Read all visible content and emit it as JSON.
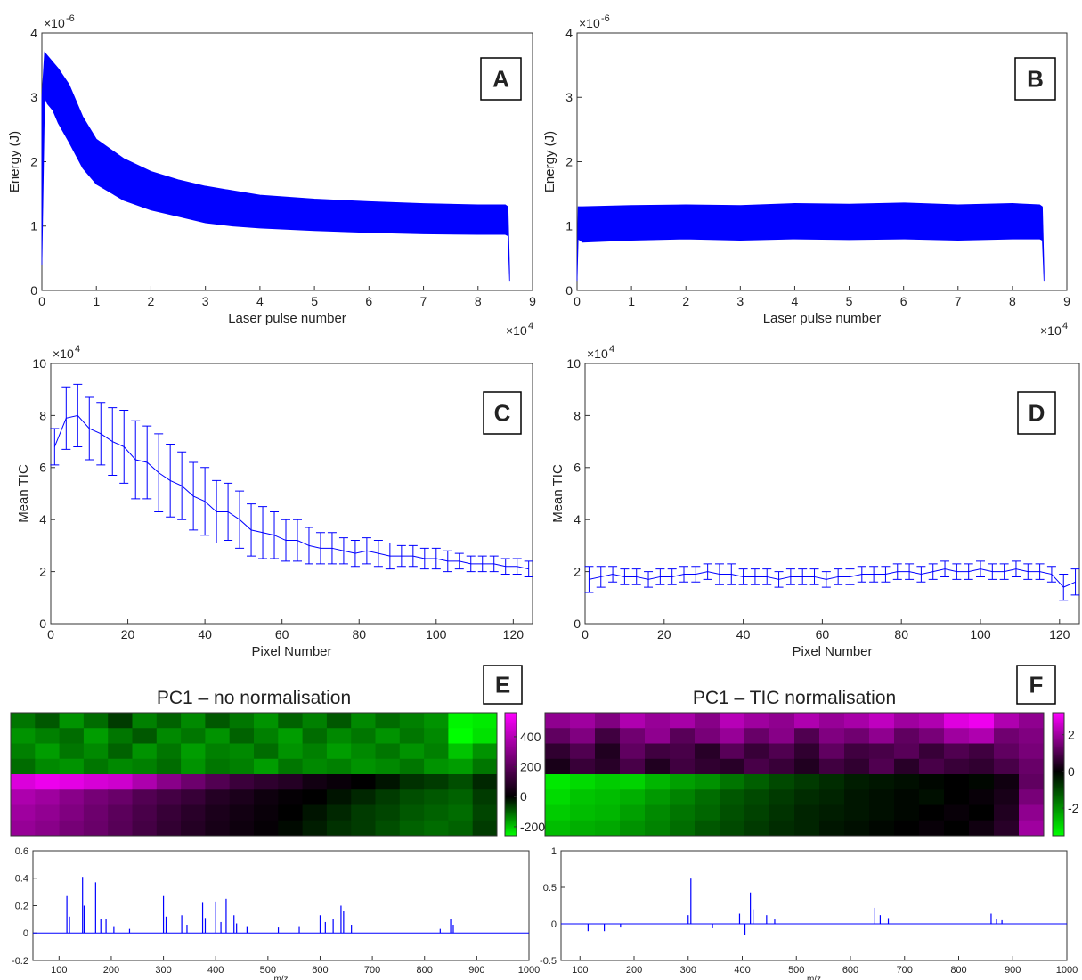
{
  "chart_data": [
    {
      "type": "band",
      "panel_label": "A",
      "x_label": "Laser pulse number",
      "y_label": "Energy (J)",
      "x_multiplier": {
        "base": "×10",
        "exponent": "4"
      },
      "y_multiplier": {
        "base": "×10",
        "exponent": "-6"
      },
      "xlim": [
        0,
        9
      ],
      "xticks": [
        0,
        1,
        2,
        3,
        4,
        5,
        6,
        7,
        8,
        9
      ],
      "ylim": [
        0,
        4
      ],
      "yticks": [
        0,
        1,
        2,
        3,
        4
      ],
      "color": "#0000ff",
      "x": [
        0,
        0.05,
        0.1,
        0.2,
        0.3,
        0.5,
        0.75,
        1,
        1.5,
        2,
        2.5,
        3,
        3.5,
        4,
        5,
        6,
        7,
        8,
        8.5,
        8.55,
        8.58
      ],
      "upper": [
        3.0,
        3.7,
        3.65,
        3.55,
        3.45,
        3.2,
        2.7,
        2.35,
        2.05,
        1.85,
        1.72,
        1.62,
        1.55,
        1.48,
        1.42,
        1.38,
        1.35,
        1.33,
        1.33,
        1.3,
        0.3
      ],
      "lower": [
        0.4,
        3.0,
        2.9,
        2.8,
        2.6,
        2.3,
        1.9,
        1.65,
        1.4,
        1.25,
        1.15,
        1.05,
        1.0,
        0.97,
        0.93,
        0.9,
        0.88,
        0.87,
        0.87,
        0.85,
        0.15
      ]
    },
    {
      "type": "band",
      "panel_label": "B",
      "x_label": "Laser pulse number",
      "y_label": "Energy (J)",
      "x_multiplier": {
        "base": "×10",
        "exponent": "4"
      },
      "y_multiplier": {
        "base": "×10",
        "exponent": "-6"
      },
      "xlim": [
        0,
        9
      ],
      "xticks": [
        0,
        1,
        2,
        3,
        4,
        5,
        6,
        7,
        8,
        9
      ],
      "ylim": [
        0,
        4
      ],
      "yticks": [
        0,
        1,
        2,
        3,
        4
      ],
      "color": "#0000ff",
      "x": [
        0,
        0.02,
        0.1,
        1,
        2,
        3,
        4,
        5,
        6,
        7,
        8,
        8.5,
        8.55,
        8.58
      ],
      "upper": [
        0.3,
        1.3,
        1.3,
        1.32,
        1.33,
        1.32,
        1.35,
        1.34,
        1.36,
        1.33,
        1.35,
        1.33,
        1.3,
        0.3
      ],
      "lower": [
        0.15,
        0.8,
        0.75,
        0.78,
        0.8,
        0.78,
        0.8,
        0.79,
        0.8,
        0.78,
        0.8,
        0.8,
        0.78,
        0.15
      ]
    },
    {
      "type": "errorbar",
      "panel_label": "C",
      "x_label": "Pixel Number",
      "y_label": "Mean TIC",
      "y_multiplier": {
        "base": "×10",
        "exponent": "4"
      },
      "xlim": [
        0,
        125
      ],
      "xticks": [
        0,
        20,
        40,
        60,
        80,
        100,
        120
      ],
      "ylim": [
        0,
        10
      ],
      "yticks": [
        0,
        2,
        4,
        6,
        8,
        10
      ],
      "color": "#0000ff",
      "x": [
        1,
        4,
        7,
        10,
        13,
        16,
        19,
        22,
        25,
        28,
        31,
        34,
        37,
        40,
        43,
        46,
        49,
        52,
        55,
        58,
        61,
        64,
        67,
        70,
        73,
        76,
        79,
        82,
        85,
        88,
        91,
        94,
        97,
        100,
        103,
        106,
        109,
        112,
        115,
        118,
        121,
        124
      ],
      "values": [
        6.8,
        7.9,
        8.0,
        7.5,
        7.3,
        7.0,
        6.8,
        6.3,
        6.2,
        5.8,
        5.5,
        5.3,
        4.9,
        4.7,
        4.3,
        4.3,
        4.0,
        3.6,
        3.5,
        3.4,
        3.2,
        3.2,
        3.0,
        2.9,
        2.9,
        2.8,
        2.7,
        2.8,
        2.7,
        2.6,
        2.6,
        2.6,
        2.5,
        2.5,
        2.4,
        2.4,
        2.3,
        2.3,
        2.3,
        2.2,
        2.2,
        2.1
      ],
      "errors": [
        0.7,
        1.2,
        1.2,
        1.2,
        1.2,
        1.3,
        1.4,
        1.5,
        1.4,
        1.5,
        1.4,
        1.3,
        1.3,
        1.3,
        1.2,
        1.1,
        1.1,
        1.0,
        1.0,
        0.9,
        0.8,
        0.8,
        0.7,
        0.6,
        0.6,
        0.5,
        0.5,
        0.5,
        0.5,
        0.5,
        0.4,
        0.4,
        0.4,
        0.4,
        0.4,
        0.3,
        0.3,
        0.3,
        0.3,
        0.3,
        0.3,
        0.3
      ]
    },
    {
      "type": "errorbar",
      "panel_label": "D",
      "x_label": "Pixel Number",
      "y_label": "Mean TIC",
      "y_multiplier": {
        "base": "×10",
        "exponent": "4"
      },
      "xlim": [
        0,
        125
      ],
      "xticks": [
        0,
        20,
        40,
        60,
        80,
        100,
        120
      ],
      "ylim": [
        0,
        10
      ],
      "yticks": [
        0,
        2,
        4,
        6,
        8,
        10
      ],
      "color": "#0000ff",
      "x": [
        1,
        4,
        7,
        10,
        13,
        16,
        19,
        22,
        25,
        28,
        31,
        34,
        37,
        40,
        43,
        46,
        49,
        52,
        55,
        58,
        61,
        64,
        67,
        70,
        73,
        76,
        79,
        82,
        85,
        88,
        91,
        94,
        97,
        100,
        103,
        106,
        109,
        112,
        115,
        118,
        121,
        124
      ],
      "values": [
        1.7,
        1.8,
        1.9,
        1.8,
        1.8,
        1.7,
        1.8,
        1.8,
        1.9,
        1.9,
        2.0,
        1.9,
        1.9,
        1.8,
        1.8,
        1.8,
        1.7,
        1.8,
        1.8,
        1.8,
        1.7,
        1.8,
        1.8,
        1.9,
        1.9,
        1.9,
        2.0,
        2.0,
        1.9,
        2.0,
        2.1,
        2.0,
        2.0,
        2.1,
        2.0,
        2.0,
        2.1,
        2.0,
        2.0,
        1.9,
        1.4,
        1.6
      ],
      "errors": [
        0.5,
        0.4,
        0.3,
        0.3,
        0.3,
        0.3,
        0.3,
        0.3,
        0.3,
        0.3,
        0.3,
        0.4,
        0.4,
        0.3,
        0.3,
        0.3,
        0.3,
        0.3,
        0.3,
        0.3,
        0.3,
        0.3,
        0.3,
        0.3,
        0.3,
        0.3,
        0.3,
        0.3,
        0.3,
        0.3,
        0.3,
        0.3,
        0.3,
        0.3,
        0.3,
        0.3,
        0.3,
        0.3,
        0.3,
        0.3,
        0.5,
        0.5
      ]
    },
    {
      "type": "heatmap",
      "panel_label": "E",
      "title": "PC1 – no normalisation",
      "colormap": [
        "#00ff00",
        "#000000",
        "#ff00ff"
      ],
      "clim": [
        -260,
        560
      ],
      "cticks": [
        -200,
        0,
        200,
        400
      ],
      "values": [
        [
          -120,
          -90,
          -150,
          -110,
          -60,
          -130,
          -100,
          -140,
          -90,
          -120,
          -150,
          -100,
          -130,
          -90,
          -140,
          -110,
          -130,
          -150,
          -250,
          -240
        ],
        [
          -150,
          -130,
          -110,
          -160,
          -120,
          -90,
          -140,
          -120,
          -150,
          -100,
          -130,
          -160,
          -110,
          -140,
          -120,
          -150,
          -120,
          -140,
          -260,
          -230
        ],
        [
          -130,
          -160,
          -120,
          -140,
          -100,
          -150,
          -120,
          -160,
          -130,
          -140,
          -110,
          -150,
          -130,
          -160,
          -140,
          -120,
          -150,
          -130,
          -200,
          -150
        ],
        [
          -110,
          -140,
          -150,
          -120,
          -140,
          -130,
          -110,
          -150,
          -120,
          -130,
          -160,
          -120,
          -140,
          -130,
          -150,
          -140,
          -120,
          -150,
          -160,
          -120
        ],
        [
          480,
          520,
          500,
          470,
          450,
          380,
          300,
          240,
          180,
          130,
          100,
          80,
          40,
          20,
          0,
          -20,
          -50,
          -60,
          -80,
          -40
        ],
        [
          380,
          350,
          300,
          260,
          230,
          180,
          150,
          120,
          80,
          60,
          30,
          10,
          0,
          -20,
          -40,
          -60,
          -80,
          -90,
          -100,
          -60
        ],
        [
          350,
          320,
          280,
          240,
          200,
          160,
          120,
          90,
          60,
          40,
          20,
          0,
          -20,
          -40,
          -60,
          -70,
          -90,
          -100,
          -110,
          -70
        ],
        [
          330,
          300,
          260,
          230,
          190,
          150,
          110,
          80,
          50,
          30,
          10,
          -10,
          -30,
          -50,
          -60,
          -80,
          -100,
          -110,
          -100,
          -60
        ]
      ]
    },
    {
      "type": "heatmap",
      "panel_label": "F",
      "title": "PC1 – TIC normalisation",
      "colormap": [
        "#00ff00",
        "#000000",
        "#ff00ff"
      ],
      "clim": [
        -3.5,
        3.2
      ],
      "cticks": [
        -2,
        0,
        2
      ],
      "values": [
        [
          1.8,
          2.0,
          1.6,
          2.2,
          1.9,
          2.1,
          1.7,
          2.3,
          2.0,
          1.8,
          2.2,
          1.9,
          2.1,
          2.4,
          2.0,
          2.2,
          2.8,
          3.0,
          2.2,
          1.8
        ],
        [
          1.2,
          1.6,
          0.8,
          1.4,
          1.8,
          1.1,
          1.5,
          1.9,
          1.3,
          1.7,
          1.0,
          1.6,
          1.4,
          1.8,
          1.2,
          1.5,
          2.0,
          2.2,
          1.4,
          1.6
        ],
        [
          0.6,
          1.0,
          0.4,
          1.2,
          0.8,
          0.9,
          0.5,
          1.1,
          0.7,
          1.0,
          0.6,
          1.2,
          0.8,
          0.9,
          1.1,
          0.7,
          1.0,
          0.8,
          1.2,
          1.5
        ],
        [
          0.3,
          0.7,
          0.5,
          0.9,
          0.4,
          0.8,
          0.6,
          0.5,
          0.9,
          0.7,
          0.4,
          0.8,
          0.6,
          1.0,
          0.5,
          0.9,
          0.7,
          0.6,
          0.9,
          1.3
        ],
        [
          -3.2,
          -3.0,
          -2.8,
          -2.9,
          -2.5,
          -2.2,
          -2.0,
          -1.6,
          -1.3,
          -1.0,
          -0.8,
          -0.6,
          -0.4,
          -0.3,
          -0.2,
          -0.1,
          0.0,
          -0.1,
          0.2,
          1.2
        ],
        [
          -3.0,
          -2.7,
          -2.6,
          -2.4,
          -2.1,
          -1.8,
          -1.5,
          -1.2,
          -1.0,
          -0.8,
          -0.6,
          -0.5,
          -0.3,
          -0.2,
          -0.1,
          -0.2,
          0.0,
          0.1,
          0.3,
          1.5
        ],
        [
          -2.8,
          -2.6,
          -2.5,
          -2.2,
          -1.9,
          -1.6,
          -1.4,
          -1.1,
          -0.9,
          -0.7,
          -0.5,
          -0.4,
          -0.3,
          -0.2,
          -0.1,
          0.0,
          0.1,
          0.0,
          0.4,
          1.8
        ],
        [
          -2.6,
          -2.4,
          -2.3,
          -2.0,
          -1.8,
          -1.5,
          -1.2,
          -1.0,
          -0.8,
          -0.6,
          -0.5,
          -0.3,
          -0.2,
          -0.1,
          0.0,
          0.1,
          0.0,
          0.2,
          0.5,
          2.0
        ]
      ]
    },
    {
      "type": "stem",
      "x_label": "m/z",
      "xlim": [
        50,
        1000
      ],
      "xticks": [
        100,
        200,
        300,
        400,
        500,
        600,
        700,
        800,
        900,
        1000
      ],
      "ylim": [
        -0.2,
        0.6
      ],
      "yticks": [
        -0.2,
        0,
        0.2,
        0.4,
        0.6
      ],
      "color": "#0000ff",
      "x": [
        115,
        120,
        145,
        148,
        170,
        180,
        190,
        205,
        235,
        300,
        305,
        335,
        345,
        375,
        380,
        400,
        410,
        420,
        435,
        440,
        460,
        520,
        560,
        600,
        610,
        625,
        640,
        645,
        660,
        830,
        850,
        855
      ],
      "values": [
        0.27,
        0.12,
        0.41,
        0.2,
        0.37,
        0.1,
        0.1,
        0.05,
        0.03,
        0.27,
        0.12,
        0.13,
        0.06,
        0.22,
        0.11,
        0.23,
        0.08,
        0.25,
        0.13,
        0.07,
        0.05,
        0.04,
        0.05,
        0.13,
        0.08,
        0.1,
        0.2,
        0.16,
        0.06,
        0.03,
        0.1,
        0.06
      ]
    },
    {
      "type": "stem",
      "x_label": "m/z",
      "xlim": [
        65,
        1000
      ],
      "xticks": [
        100,
        200,
        300,
        400,
        500,
        600,
        700,
        800,
        900,
        1000
      ],
      "ylim": [
        -0.5,
        1
      ],
      "yticks": [
        -0.5,
        0,
        0.5,
        1
      ],
      "color": "#0000ff",
      "x": [
        115,
        145,
        175,
        300,
        305,
        345,
        395,
        405,
        415,
        420,
        445,
        460,
        645,
        655,
        670,
        860,
        870,
        880
      ],
      "values": [
        -0.1,
        -0.1,
        -0.05,
        0.12,
        0.62,
        -0.06,
        0.14,
        -0.15,
        0.43,
        0.2,
        0.12,
        0.06,
        0.22,
        0.12,
        0.08,
        0.14,
        0.07,
        0.05
      ]
    }
  ]
}
